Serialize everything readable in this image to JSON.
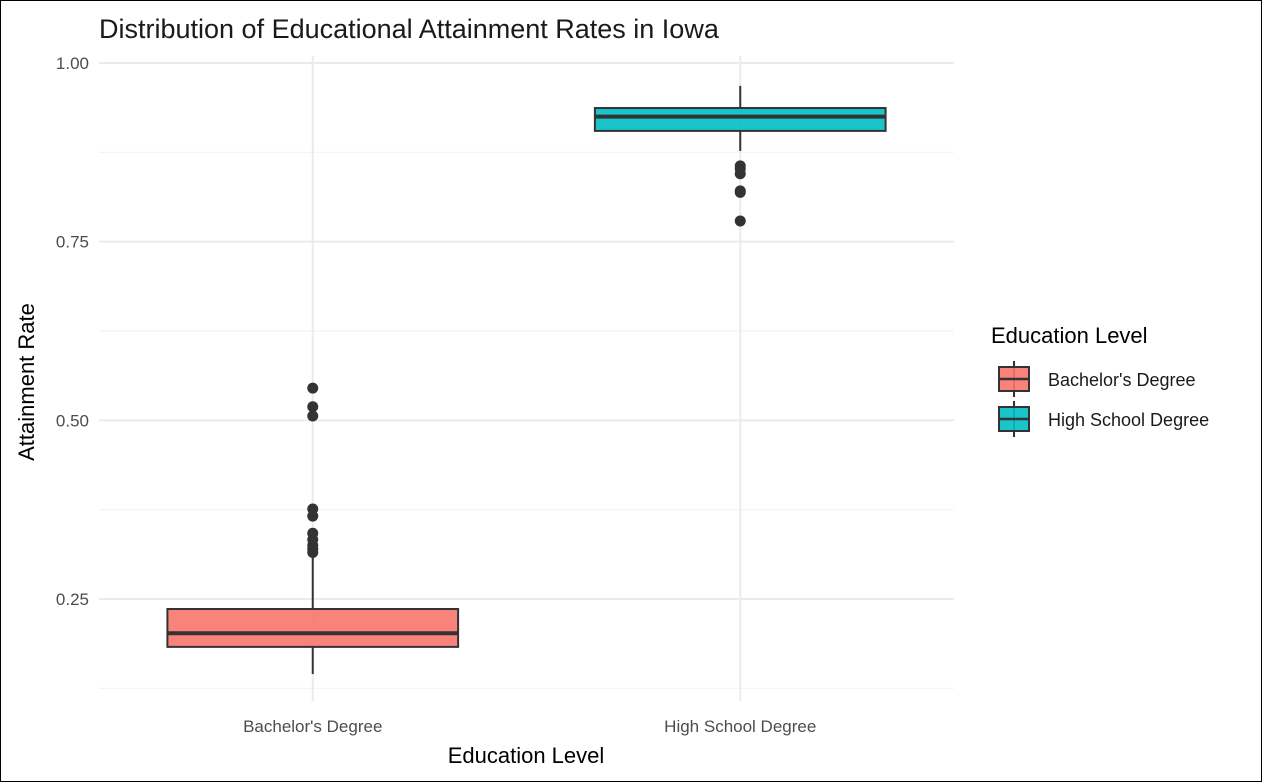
{
  "chart_data": {
    "type": "boxplot",
    "title": "Distribution of Educational Attainment Rates in Iowa",
    "xlabel": "Education Level",
    "ylabel": "Attainment Rate",
    "ylim": [
      0.12,
      1.0
    ],
    "yticks": [
      0.25,
      0.5,
      0.75,
      1.0
    ],
    "ytick_labels": [
      "0.25",
      "0.50",
      "0.75",
      "1.00"
    ],
    "yminor": [
      0.125,
      0.375,
      0.625,
      0.875
    ],
    "grid": true,
    "categories": [
      "Bachelor's Degree",
      "High School Degree"
    ],
    "legend": {
      "title": "Education Level",
      "position": "right",
      "entries": [
        "Bachelor's Degree",
        "High School Degree"
      ]
    },
    "series": [
      {
        "category": "Bachelor's Degree",
        "color": "#F8766D",
        "whisker_low": 0.145,
        "q1": 0.183,
        "median": 0.202,
        "q3": 0.236,
        "whisker_high": 0.313,
        "outliers": [
          0.315,
          0.32,
          0.325,
          0.333,
          0.342,
          0.366,
          0.376,
          0.506,
          0.519,
          0.545
        ]
      },
      {
        "category": "High School Degree",
        "color": "#00BFC4",
        "whisker_low": 0.877,
        "q1": 0.905,
        "median": 0.925,
        "q3": 0.937,
        "whisker_high": 0.968,
        "outliers": [
          0.779,
          0.819,
          0.821,
          0.845,
          0.852,
          0.856
        ]
      }
    ]
  }
}
